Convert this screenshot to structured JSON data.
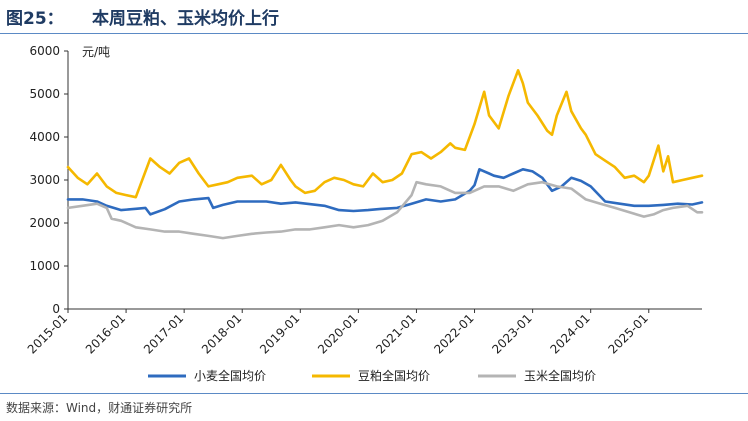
{
  "header": {
    "figure_no": "图25：",
    "title": "本周豆粕、玉米均价上行"
  },
  "source": "数据来源：Wind，财通证券研究所",
  "colors": {
    "rule": "#5b8ac5",
    "title": "#1f3b63"
  },
  "chart_data": {
    "type": "line",
    "title": "本周豆粕、玉米均价上行",
    "ylabel": "元/吨",
    "ylim": [
      0,
      6000
    ],
    "yticks": [
      0,
      1000,
      2000,
      3000,
      4000,
      5000,
      6000
    ],
    "xlim": [
      "2015-01",
      "2025-12"
    ],
    "xticks": [
      "2015-01",
      "2016-01",
      "2017-01",
      "2018-01",
      "2019-01",
      "2020-01",
      "2021-01",
      "2022-01",
      "2023-01",
      "2024-01",
      "2025-01"
    ],
    "legend_position": "bottom",
    "series": [
      {
        "name": "小麦全国均价",
        "color": "#2e6bbf",
        "points": [
          [
            "2015-01",
            2550
          ],
          [
            "2015-04",
            2550
          ],
          [
            "2015-07",
            2500
          ],
          [
            "2015-09",
            2400
          ],
          [
            "2015-12",
            2300
          ],
          [
            "2016-03",
            2330
          ],
          [
            "2016-05",
            2350
          ],
          [
            "2016-06",
            2200
          ],
          [
            "2016-09",
            2320
          ],
          [
            "2016-12",
            2500
          ],
          [
            "2017-03",
            2550
          ],
          [
            "2017-06",
            2580
          ],
          [
            "2017-07",
            2350
          ],
          [
            "2017-09",
            2420
          ],
          [
            "2017-12",
            2500
          ],
          [
            "2018-06",
            2500
          ],
          [
            "2018-09",
            2450
          ],
          [
            "2018-12",
            2480
          ],
          [
            "2019-06",
            2400
          ],
          [
            "2019-09",
            2300
          ],
          [
            "2019-12",
            2280
          ],
          [
            "2020-03",
            2300
          ],
          [
            "2020-06",
            2330
          ],
          [
            "2020-09",
            2350
          ],
          [
            "2020-12",
            2450
          ],
          [
            "2021-03",
            2550
          ],
          [
            "2021-06",
            2500
          ],
          [
            "2021-09",
            2550
          ],
          [
            "2021-12",
            2750
          ],
          [
            "2022-01",
            2880
          ],
          [
            "2022-02",
            3250
          ],
          [
            "2022-04",
            3150
          ],
          [
            "2022-05",
            3100
          ],
          [
            "2022-07",
            3050
          ],
          [
            "2022-09",
            3150
          ],
          [
            "2022-11",
            3250
          ],
          [
            "2023-01",
            3200
          ],
          [
            "2023-03",
            3050
          ],
          [
            "2023-05",
            2750
          ],
          [
            "2023-07",
            2850
          ],
          [
            "2023-09",
            3050
          ],
          [
            "2023-11",
            2980
          ],
          [
            "2024-01",
            2850
          ],
          [
            "2024-04",
            2500
          ],
          [
            "2024-07",
            2450
          ],
          [
            "2024-10",
            2400
          ],
          [
            "2025-01",
            2400
          ],
          [
            "2025-04",
            2420
          ],
          [
            "2025-07",
            2450
          ],
          [
            "2025-10",
            2430
          ],
          [
            "2025-12",
            2480
          ]
        ]
      },
      {
        "name": "豆粕全国均价",
        "color": "#f5b800",
        "points": [
          [
            "2015-01",
            3300
          ],
          [
            "2015-03",
            3050
          ],
          [
            "2015-05",
            2900
          ],
          [
            "2015-07",
            3150
          ],
          [
            "2015-09",
            2850
          ],
          [
            "2015-11",
            2700
          ],
          [
            "2016-01",
            2650
          ],
          [
            "2016-03",
            2600
          ],
          [
            "2016-06",
            3500
          ],
          [
            "2016-08",
            3300
          ],
          [
            "2016-10",
            3150
          ],
          [
            "2016-12",
            3400
          ],
          [
            "2017-02",
            3500
          ],
          [
            "2017-04",
            3150
          ],
          [
            "2017-06",
            2850
          ],
          [
            "2017-08",
            2900
          ],
          [
            "2017-10",
            2950
          ],
          [
            "2017-12",
            3050
          ],
          [
            "2018-03",
            3100
          ],
          [
            "2018-05",
            2900
          ],
          [
            "2018-07",
            3000
          ],
          [
            "2018-09",
            3350
          ],
          [
            "2018-11",
            3000
          ],
          [
            "2018-12",
            2850
          ],
          [
            "2019-02",
            2700
          ],
          [
            "2019-04",
            2750
          ],
          [
            "2019-06",
            2950
          ],
          [
            "2019-08",
            3050
          ],
          [
            "2019-10",
            3000
          ],
          [
            "2019-12",
            2900
          ],
          [
            "2020-02",
            2850
          ],
          [
            "2020-04",
            3150
          ],
          [
            "2020-06",
            2950
          ],
          [
            "2020-08",
            3000
          ],
          [
            "2020-10",
            3150
          ],
          [
            "2020-12",
            3600
          ],
          [
            "2021-02",
            3650
          ],
          [
            "2021-04",
            3500
          ],
          [
            "2021-06",
            3650
          ],
          [
            "2021-08",
            3850
          ],
          [
            "2021-09",
            3750
          ],
          [
            "2021-11",
            3700
          ],
          [
            "2022-01",
            4300
          ],
          [
            "2022-03",
            5050
          ],
          [
            "2022-04",
            4500
          ],
          [
            "2022-06",
            4200
          ],
          [
            "2022-08",
            4950
          ],
          [
            "2022-10",
            5550
          ],
          [
            "2022-11",
            5250
          ],
          [
            "2022-12",
            4800
          ],
          [
            "2023-02",
            4500
          ],
          [
            "2023-04",
            4150
          ],
          [
            "2023-05",
            4050
          ],
          [
            "2023-06",
            4500
          ],
          [
            "2023-08",
            5050
          ],
          [
            "2023-09",
            4600
          ],
          [
            "2023-11",
            4200
          ],
          [
            "2023-12",
            4050
          ],
          [
            "2024-02",
            3600
          ],
          [
            "2024-04",
            3450
          ],
          [
            "2024-06",
            3300
          ],
          [
            "2024-08",
            3050
          ],
          [
            "2024-10",
            3100
          ],
          [
            "2024-12",
            2950
          ],
          [
            "2025-01",
            3100
          ],
          [
            "2025-03",
            3800
          ],
          [
            "2025-04",
            3200
          ],
          [
            "2025-05",
            3550
          ],
          [
            "2025-06",
            2950
          ],
          [
            "2025-08",
            3000
          ],
          [
            "2025-10",
            3050
          ],
          [
            "2025-12",
            3100
          ]
        ]
      },
      {
        "name": "玉米全国均价",
        "color": "#b4b4b4",
        "points": [
          [
            "2015-01",
            2350
          ],
          [
            "2015-04",
            2400
          ],
          [
            "2015-07",
            2450
          ],
          [
            "2015-09",
            2350
          ],
          [
            "2015-10",
            2100
          ],
          [
            "2015-12",
            2050
          ],
          [
            "2016-03",
            1900
          ],
          [
            "2016-06",
            1850
          ],
          [
            "2016-09",
            1800
          ],
          [
            "2016-12",
            1800
          ],
          [
            "2017-03",
            1750
          ],
          [
            "2017-06",
            1700
          ],
          [
            "2017-09",
            1650
          ],
          [
            "2017-12",
            1700
          ],
          [
            "2018-03",
            1750
          ],
          [
            "2018-06",
            1780
          ],
          [
            "2018-09",
            1800
          ],
          [
            "2018-12",
            1850
          ],
          [
            "2019-03",
            1850
          ],
          [
            "2019-06",
            1900
          ],
          [
            "2019-09",
            1950
          ],
          [
            "2019-12",
            1900
          ],
          [
            "2020-03",
            1950
          ],
          [
            "2020-06",
            2050
          ],
          [
            "2020-09",
            2250
          ],
          [
            "2020-12",
            2650
          ],
          [
            "2021-01",
            2950
          ],
          [
            "2021-03",
            2900
          ],
          [
            "2021-06",
            2850
          ],
          [
            "2021-09",
            2700
          ],
          [
            "2021-12",
            2700
          ],
          [
            "2022-03",
            2850
          ],
          [
            "2022-06",
            2850
          ],
          [
            "2022-09",
            2750
          ],
          [
            "2022-12",
            2900
          ],
          [
            "2023-03",
            2950
          ],
          [
            "2023-06",
            2850
          ],
          [
            "2023-09",
            2800
          ],
          [
            "2023-12",
            2550
          ],
          [
            "2024-03",
            2450
          ],
          [
            "2024-06",
            2350
          ],
          [
            "2024-09",
            2250
          ],
          [
            "2024-12",
            2150
          ],
          [
            "2025-02",
            2200
          ],
          [
            "2025-04",
            2300
          ],
          [
            "2025-06",
            2350
          ],
          [
            "2025-09",
            2400
          ],
          [
            "2025-11",
            2250
          ],
          [
            "2025-12",
            2250
          ]
        ]
      }
    ]
  }
}
